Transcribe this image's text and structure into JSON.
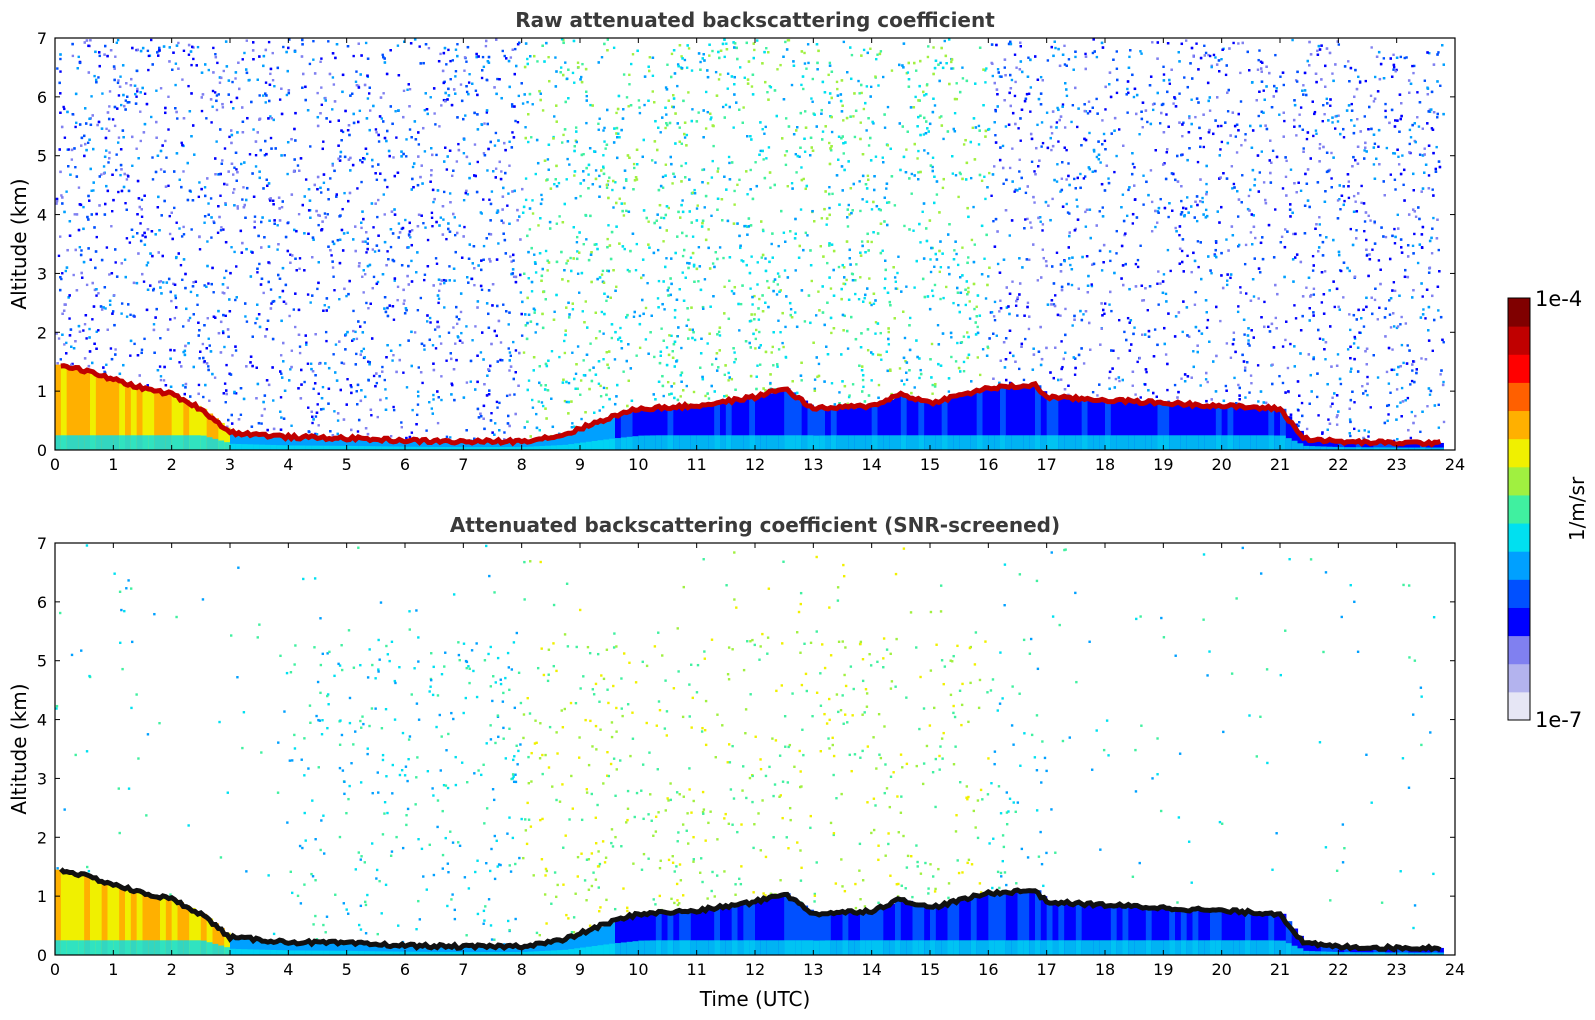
{
  "chart_data": [
    {
      "type": "heatmap",
      "title": "Raw attenuated backscattering coefficient",
      "xlabel": "",
      "ylabel": "Altitude (km)",
      "xlim": [
        0,
        24
      ],
      "ylim": [
        0,
        7
      ],
      "x_ticks": [
        "0",
        "1",
        "2",
        "3",
        "4",
        "5",
        "6",
        "7",
        "8",
        "9",
        "10",
        "11",
        "12",
        "13",
        "14",
        "15",
        "16",
        "17",
        "18",
        "19",
        "20",
        "21",
        "22",
        "23",
        "24"
      ],
      "y_ticks": [
        "0",
        "1",
        "2",
        "3",
        "4",
        "5",
        "6",
        "7"
      ],
      "layer_top_km": [
        {
          "t": 0.1,
          "h": 1.45
        },
        {
          "t": 0.5,
          "h": 1.35
        },
        {
          "t": 1.0,
          "h": 1.2
        },
        {
          "t": 1.5,
          "h": 1.05
        },
        {
          "t": 2.0,
          "h": 0.95
        },
        {
          "t": 2.5,
          "h": 0.7
        },
        {
          "t": 3.0,
          "h": 0.3
        },
        {
          "t": 4.0,
          "h": 0.22
        },
        {
          "t": 5.0,
          "h": 0.2
        },
        {
          "t": 6.0,
          "h": 0.16
        },
        {
          "t": 7.0,
          "h": 0.14
        },
        {
          "t": 8.0,
          "h": 0.15
        },
        {
          "t": 8.7,
          "h": 0.25
        },
        {
          "t": 9.5,
          "h": 0.55
        },
        {
          "t": 10.0,
          "h": 0.7
        },
        {
          "t": 11.0,
          "h": 0.75
        },
        {
          "t": 12.0,
          "h": 0.9
        },
        {
          "t": 12.5,
          "h": 1.05
        },
        {
          "t": 13.0,
          "h": 0.7
        },
        {
          "t": 14.0,
          "h": 0.75
        },
        {
          "t": 14.5,
          "h": 0.95
        },
        {
          "t": 15.0,
          "h": 0.8
        },
        {
          "t": 16.0,
          "h": 1.05
        },
        {
          "t": 16.8,
          "h": 1.1
        },
        {
          "t": 17.0,
          "h": 0.9
        },
        {
          "t": 18.0,
          "h": 0.85
        },
        {
          "t": 19.0,
          "h": 0.8
        },
        {
          "t": 20.0,
          "h": 0.75
        },
        {
          "t": 21.0,
          "h": 0.7
        },
        {
          "t": 21.4,
          "h": 0.2
        },
        {
          "t": 22.0,
          "h": 0.14
        },
        {
          "t": 23.0,
          "h": 0.12
        },
        {
          "t": 23.8,
          "h": 0.12
        }
      ],
      "colorbar_range": [
        "1e-7",
        "1e-4"
      ]
    },
    {
      "type": "heatmap",
      "title": "Attenuated backscattering coefficient (SNR-screened)",
      "xlabel": "Time (UTC)",
      "ylabel": "Altitude (km)",
      "xlim": [
        0,
        24
      ],
      "ylim": [
        0,
        7
      ],
      "x_ticks": [
        "0",
        "1",
        "2",
        "3",
        "4",
        "5",
        "6",
        "7",
        "8",
        "9",
        "10",
        "11",
        "12",
        "13",
        "14",
        "15",
        "16",
        "17",
        "18",
        "19",
        "20",
        "21",
        "22",
        "23",
        "24"
      ],
      "y_ticks": [
        "0",
        "1",
        "2",
        "3",
        "4",
        "5",
        "6",
        "7"
      ],
      "layer_top_km": [
        {
          "t": 0.1,
          "h": 1.45
        },
        {
          "t": 0.5,
          "h": 1.35
        },
        {
          "t": 1.0,
          "h": 1.2
        },
        {
          "t": 1.5,
          "h": 1.05
        },
        {
          "t": 2.0,
          "h": 0.95
        },
        {
          "t": 2.5,
          "h": 0.7
        },
        {
          "t": 3.0,
          "h": 0.3
        },
        {
          "t": 4.0,
          "h": 0.22
        },
        {
          "t": 5.0,
          "h": 0.2
        },
        {
          "t": 6.0,
          "h": 0.16
        },
        {
          "t": 7.0,
          "h": 0.14
        },
        {
          "t": 8.0,
          "h": 0.15
        },
        {
          "t": 8.7,
          "h": 0.25
        },
        {
          "t": 9.5,
          "h": 0.55
        },
        {
          "t": 10.0,
          "h": 0.7
        },
        {
          "t": 11.0,
          "h": 0.75
        },
        {
          "t": 12.0,
          "h": 0.9
        },
        {
          "t": 12.5,
          "h": 1.05
        },
        {
          "t": 13.0,
          "h": 0.7
        },
        {
          "t": 14.0,
          "h": 0.75
        },
        {
          "t": 14.5,
          "h": 0.95
        },
        {
          "t": 15.0,
          "h": 0.8
        },
        {
          "t": 16.0,
          "h": 1.05
        },
        {
          "t": 16.8,
          "h": 1.1
        },
        {
          "t": 17.0,
          "h": 0.9
        },
        {
          "t": 18.0,
          "h": 0.85
        },
        {
          "t": 19.0,
          "h": 0.8
        },
        {
          "t": 20.0,
          "h": 0.75
        },
        {
          "t": 21.0,
          "h": 0.7
        },
        {
          "t": 21.4,
          "h": 0.2
        },
        {
          "t": 22.0,
          "h": 0.14
        },
        {
          "t": 23.0,
          "h": 0.12
        },
        {
          "t": 23.8,
          "h": 0.12
        }
      ],
      "colorbar_range": [
        "1e-7",
        "1e-4"
      ]
    }
  ],
  "colorbar": {
    "label": "1/m/sr",
    "max_label": "1e-4",
    "min_label": "1e-7",
    "colors": [
      "#e6e6f5",
      "#b3b3ee",
      "#8080f0",
      "#0000ff",
      "#0050ff",
      "#00a0ff",
      "#00e0f0",
      "#40f0a0",
      "#a0f040",
      "#f0f000",
      "#ffb000",
      "#ff6000",
      "#ff0000",
      "#c00000",
      "#800000"
    ]
  }
}
